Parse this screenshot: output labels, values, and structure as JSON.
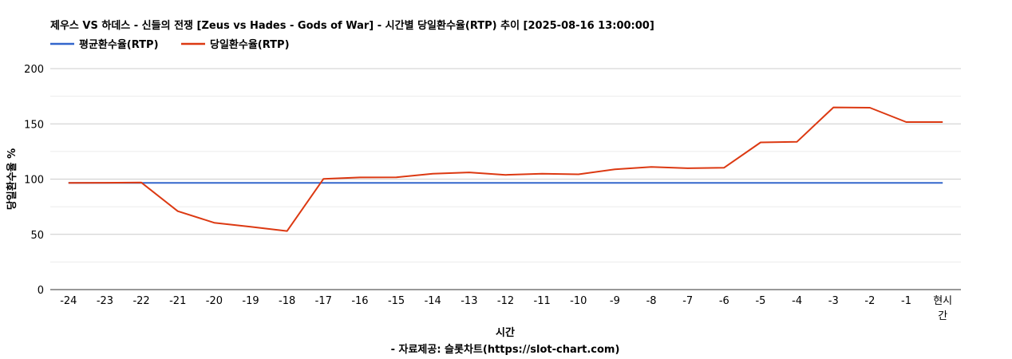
{
  "chart_data": {
    "type": "line",
    "title": "제우스 VS 하데스 - 신들의 전쟁 [Zeus vs Hades - Gods of War] - 시간별 당일환수율(RTP) 추이 [2025-08-16 13:00:00]",
    "xlabel": "시간",
    "xlabel_sub": "- 자료제공: 슬롯차트(https://slot-chart.com)",
    "ylabel": "당일환수율 %",
    "ylim": [
      0,
      200
    ],
    "yticks": [
      "0",
      "50",
      "100",
      "150",
      "200"
    ],
    "ytick_values": [
      0,
      50,
      100,
      150,
      200
    ],
    "grid": true,
    "legend_position": "top-left",
    "categories": [
      "-24",
      "-23",
      "-22",
      "-21",
      "-20",
      "-19",
      "-18",
      "-17",
      "-16",
      "-15",
      "-14",
      "-13",
      "-12",
      "-11",
      "-10",
      "-9",
      "-8",
      "-7",
      "-6",
      "-5",
      "-4",
      "-3",
      "-2",
      "-1",
      "현시간"
    ],
    "series": [
      {
        "name": "평균환수율(RTP)",
        "color": "#3366cc",
        "values": [
          96.5,
          96.5,
          96.5,
          96.5,
          96.5,
          96.5,
          96.5,
          96.5,
          96.5,
          96.5,
          96.5,
          96.5,
          96.5,
          96.5,
          96.5,
          96.5,
          96.5,
          96.5,
          96.5,
          96.5,
          96.5,
          96.5,
          96.5,
          96.5,
          96.5
        ]
      },
      {
        "name": "당일환수율(RTP)",
        "color": "#dc3912",
        "values": [
          96.5,
          96.7,
          96.9,
          71.0,
          60.5,
          56.8,
          53.0,
          100.2,
          101.5,
          101.6,
          104.9,
          106.1,
          103.8,
          104.9,
          104.3,
          108.9,
          111.0,
          109.8,
          110.3,
          133.2,
          133.8,
          164.9,
          164.6,
          151.6,
          151.6
        ]
      }
    ]
  }
}
